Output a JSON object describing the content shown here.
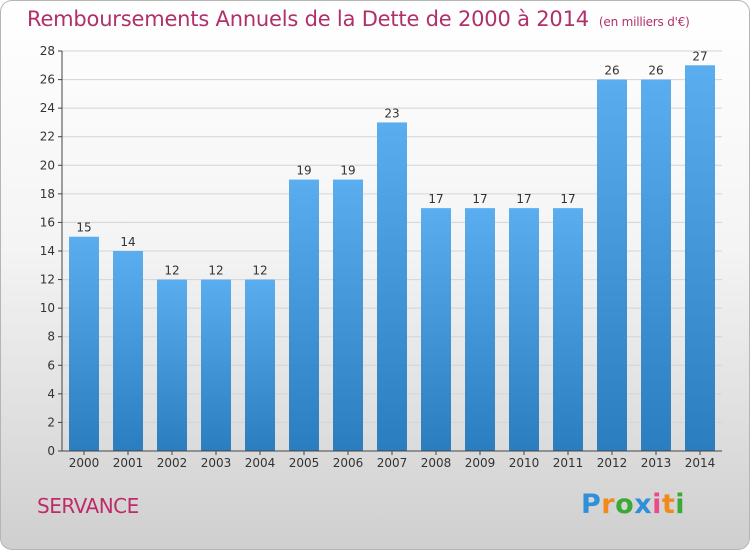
{
  "title": "Remboursements Annuels de la Dette de 2000 à 2014",
  "subtitle": "(en milliers d'€)",
  "commune": "SERVANCE",
  "logo": {
    "p": "P",
    "r": "r",
    "o": "o",
    "x": "x",
    "i1": "i",
    "t": "t",
    "i2": "i"
  },
  "colors": {
    "title": "#b0306a",
    "bar_top": "#5aaef0",
    "bar_bottom": "#2a7ec0"
  },
  "chart_data": {
    "type": "bar",
    "title": "Remboursements Annuels de la Dette de 2000 à 2014",
    "xlabel": "",
    "ylabel": "",
    "ylim": [
      0,
      28
    ],
    "yticks": [
      0,
      2,
      4,
      6,
      8,
      10,
      12,
      14,
      16,
      18,
      20,
      22,
      24,
      26,
      28
    ],
    "grid": true,
    "categories": [
      "2000",
      "2001",
      "2002",
      "2003",
      "2004",
      "2005",
      "2006",
      "2007",
      "2008",
      "2009",
      "2010",
      "2011",
      "2012",
      "2013",
      "2014"
    ],
    "values": [
      15,
      14,
      12,
      12,
      12,
      19,
      19,
      23,
      17,
      17,
      17,
      17,
      26,
      26,
      27
    ]
  }
}
